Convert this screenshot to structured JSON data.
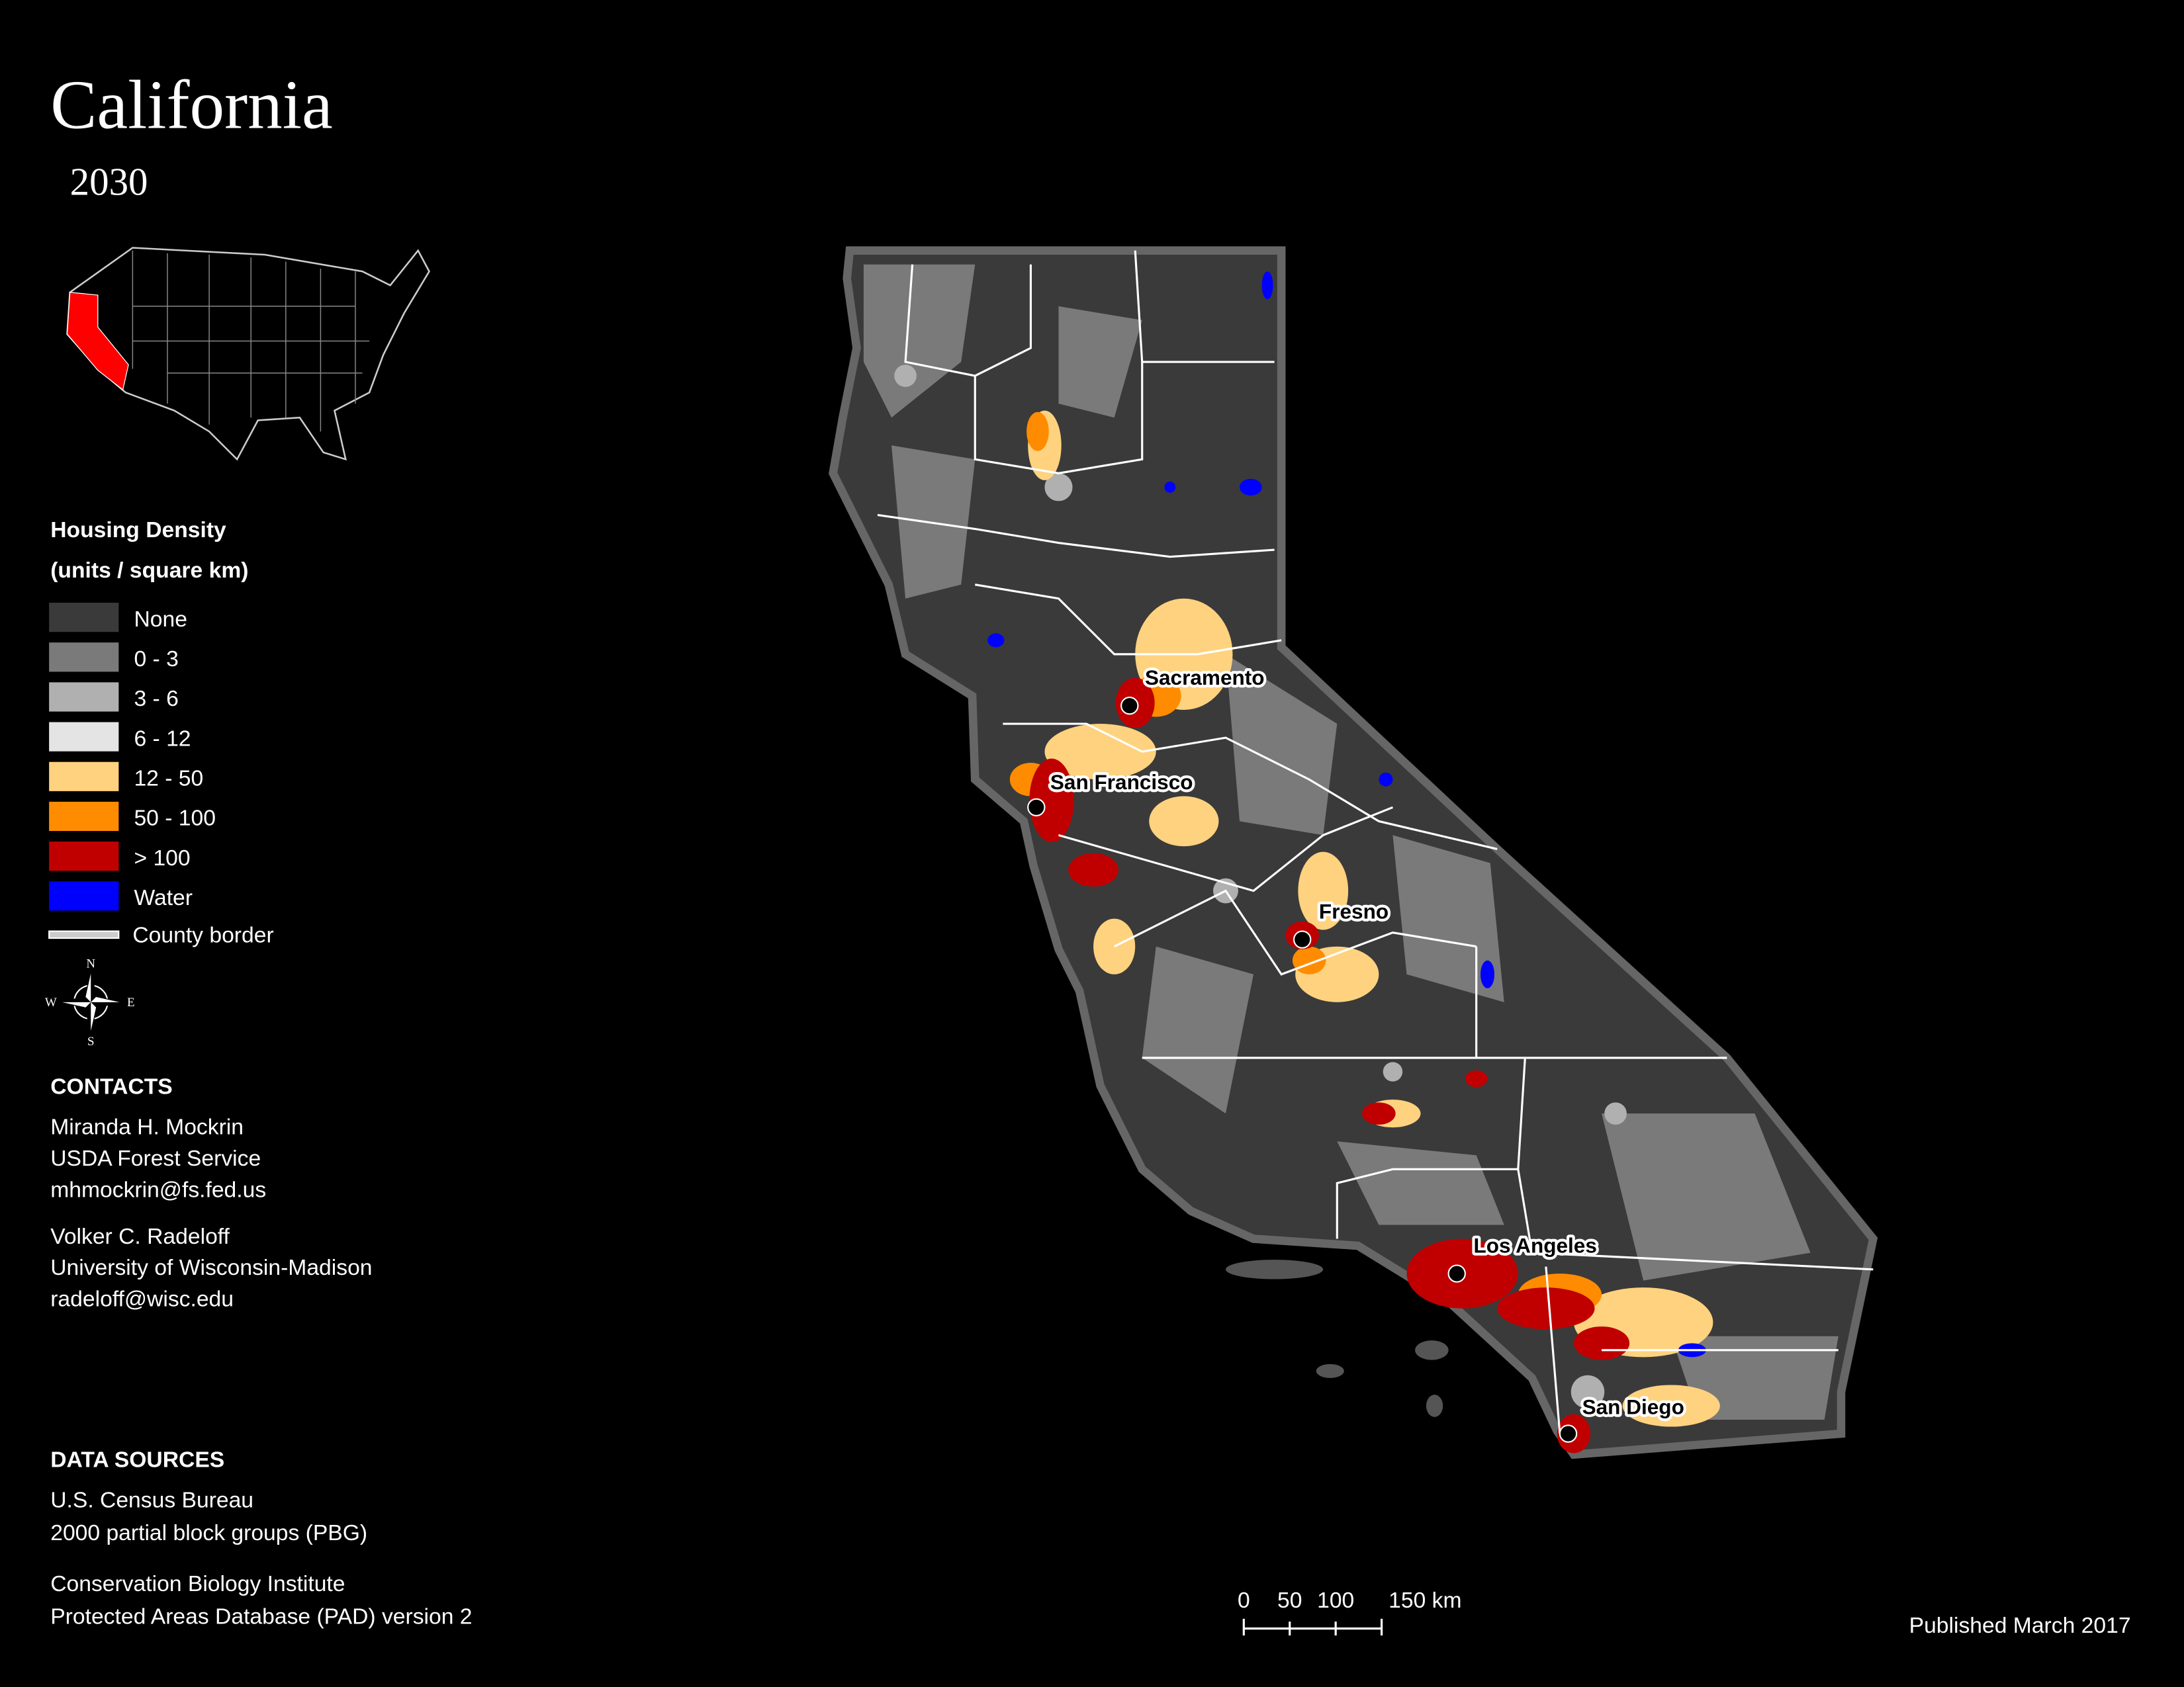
{
  "title": "California",
  "subtitle": "2030",
  "legend": {
    "title": "Housing Density",
    "subtitle": "(units / square km)",
    "items": [
      {
        "label": "None",
        "color": "#3a3a3a"
      },
      {
        "label": "0 - 3",
        "color": "#7a7a7a"
      },
      {
        "label": "3 - 6",
        "color": "#b0b0b0"
      },
      {
        "label": "6 - 12",
        "color": "#e4e4e4"
      },
      {
        "label": "12 - 50",
        "color": "#ffd27f"
      },
      {
        "label": "50 - 100",
        "color": "#ff8c00"
      },
      {
        "label": "> 100",
        "color": "#c00000"
      },
      {
        "label": "Water",
        "color": "#0000ff"
      }
    ],
    "border_label": "County border"
  },
  "compass": {
    "n": "N",
    "e": "E",
    "s": "S",
    "w": "W"
  },
  "cities": [
    {
      "name": "Sacramento"
    },
    {
      "name": "San Francisco"
    },
    {
      "name": "Fresno"
    },
    {
      "name": "Los Angeles"
    },
    {
      "name": "San Diego"
    }
  ],
  "contacts": {
    "heading": "CONTACTS",
    "people": [
      [
        "Miranda H. Mockrin",
        "USDA Forest Service",
        "mhmockrin@fs.fed.us"
      ],
      [
        "Volker C. Radeloff",
        "University of Wisconsin-Madison",
        "radeloff@wisc.edu"
      ]
    ]
  },
  "data_sources": {
    "heading": "DATA SOURCES",
    "groups": [
      [
        "U.S. Census Bureau",
        "2000 partial block groups (PBG)"
      ],
      [
        "Conservation Biology Institute",
        "Protected Areas Database (PAD) version 2"
      ]
    ]
  },
  "scale_bar": {
    "labels": [
      "0",
      "50",
      "100",
      "150 km"
    ]
  },
  "published": "Published March 2017"
}
